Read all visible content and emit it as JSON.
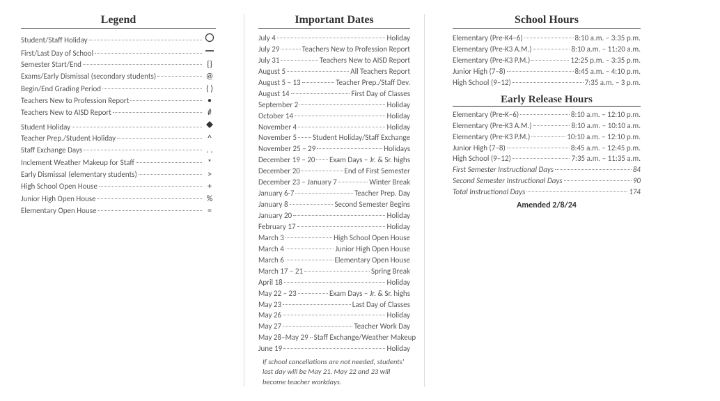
{
  "legend": {
    "title": "Legend",
    "items": [
      {
        "label": "Student/Staff Holiday",
        "symbol": "circle"
      },
      {
        "label": "First/Last Day of School",
        "symbol": "hline"
      },
      {
        "label": "Semester Start/End",
        "symbol": "{}"
      },
      {
        "label": "Exams/Early Dismissal (secondary students)",
        "symbol": "@"
      },
      {
        "label": "Begin/End Grading Period",
        "symbol": "( )"
      },
      {
        "label": "Teachers New to Profession Report",
        "symbol": "•"
      },
      {
        "label": "Teachers New to AISD Report",
        "symbol": "#"
      },
      {
        "label": "Student Holiday",
        "symbol": "diamond"
      },
      {
        "label": "Teacher Prep./Student Holiday",
        "symbol": "^"
      },
      {
        "label": "Staff Exchange Days",
        "symbol": ". ."
      },
      {
        "label": "Inclement Weather Makeup for Staff",
        "symbol": "*"
      },
      {
        "label": "Early Dismissal (elementary students)",
        "symbol": ">"
      },
      {
        "label": "High School Open House",
        "symbol": "+"
      },
      {
        "label": "Junior High Open House",
        "symbol": "%"
      },
      {
        "label": "Elementary Open House",
        "symbol": "="
      }
    ]
  },
  "dates": {
    "title": "Important Dates",
    "items": [
      {
        "label": "July 4",
        "value": "Holiday"
      },
      {
        "label": "July 29",
        "value": "Teachers New to Profession Report"
      },
      {
        "label": "July 31",
        "value": "Teachers New to AISD Report"
      },
      {
        "label": "August 5",
        "value": "All Teachers Report"
      },
      {
        "label": "August 5 – 13",
        "value": "Teacher Prep./Staff Dev."
      },
      {
        "label": "August 14",
        "value": "First Day of Classes"
      },
      {
        "label": "September 2",
        "value": "Holiday"
      },
      {
        "label": "October 14",
        "value": "Holiday"
      },
      {
        "label": "November 4",
        "value": "Holiday"
      },
      {
        "label": "November 5",
        "value": "Student Holiday/Staff Exchange"
      },
      {
        "label": "November 25 – 29",
        "value": "Holidays"
      },
      {
        "label": "December 19 – 20",
        "value": "Exam Days – Jr. & Sr. highs"
      },
      {
        "label": "December 20",
        "value": "End of First Semester"
      },
      {
        "label": "December 23 – January 7",
        "value": "Winter Break"
      },
      {
        "label": "January 6-7",
        "value": "Teacher Prep. Day"
      },
      {
        "label": "January 8",
        "value": "Second Semester Begins"
      },
      {
        "label": "January 20",
        "value": "Holiday"
      },
      {
        "label": "February 17",
        "value": "Holiday"
      },
      {
        "label": "March 3",
        "value": "High School Open House"
      },
      {
        "label": "March 4",
        "value": "Junior High Open House"
      },
      {
        "label": "March 6",
        "value": "Elementary Open House"
      },
      {
        "label": "March 17 – 21",
        "value": "Spring Break"
      },
      {
        "label": "April 18",
        "value": "Holiday"
      },
      {
        "label": "May 22 – 23",
        "value": "Exam Days – Jr. & Sr. highs"
      },
      {
        "label": "May 23",
        "value": "Last Day of Classes"
      },
      {
        "label": "May 26",
        "value": "Holiday"
      },
      {
        "label": "May 27",
        "value": "Teacher Work Day"
      },
      {
        "label": " May 28–May 29",
        "value": "Staff Exchange/Weather  Makeup"
      },
      {
        "label": "June 19",
        "value": "Holiday"
      }
    ],
    "note": "If school cancellations are not needed, students' last day will be May 21.  May 22 and 23 will become teacher workdays."
  },
  "hours": {
    "title": "School Hours",
    "items": [
      {
        "label": "Elementary (Pre-K4–6)",
        "value": "8:10 a.m. – 3:35 p.m."
      },
      {
        "label": "Elementary (Pre-K3 A.M.)",
        "value": "8:10 a.m. – 11:20 a.m."
      },
      {
        "label": "Elementary (Pre-K3 P.M.)",
        "value": "12:25 p.m. – 3:35 p.m."
      },
      {
        "label": "Junior High (7–8)",
        "value": "8:45 a.m. – 4:10 p.m."
      },
      {
        "label": "High School (9–12)",
        "value": "7:35 a.m. – 3 p.m."
      }
    ],
    "early_title": "Early Release Hours",
    "early_items": [
      {
        "label": "Elementary (Pre-K–6)",
        "value": "8:10 a.m. – 12:10 p.m."
      },
      {
        "label": "Elementary (Pre-K3 A.M.)",
        "value": "8:10 a.m. – 10:10 a.m."
      },
      {
        "label": "Elementary (Pre-K3 P.M.)",
        "value": "10:10 a.m. – 12:10 p.m."
      },
      {
        "label": "Junior High (7–8)",
        "value": "8:45 a.m. – 12:45 p.m."
      },
      {
        "label": "High School (9–12)",
        "value": "7:35 a.m. – 11:35 a.m."
      }
    ],
    "instructional": [
      {
        "label": "First Semester Instructional Days",
        "value": "84"
      },
      {
        "label": "Second Semester Instructional Days",
        "value": "90"
      },
      {
        "label": "Total Instructional Days",
        "value": "174"
      }
    ],
    "amended": "Amended 2/8/24"
  }
}
